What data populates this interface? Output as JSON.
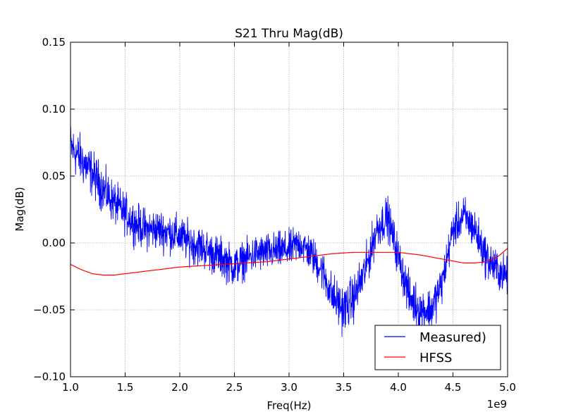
{
  "chart_data": {
    "type": "line",
    "title": "S21 Thru Mag(dB)",
    "xlabel": "Freq(Hz)",
    "ylabel": "Mag(dB)",
    "x_offset_label": "1e9",
    "xlim": [
      1.0,
      5.0
    ],
    "ylim": [
      -0.1,
      0.15
    ],
    "xticks": [
      1.0,
      1.5,
      2.0,
      2.5,
      3.0,
      3.5,
      4.0,
      4.5,
      5.0
    ],
    "xtick_labels": [
      "1.0",
      "1.5",
      "2.0",
      "2.5",
      "3.0",
      "3.5",
      "4.0",
      "4.5",
      "5.0"
    ],
    "yticks": [
      -0.1,
      -0.05,
      0.0,
      0.05,
      0.1,
      0.15
    ],
    "ytick_labels": [
      "−0.10",
      "−0.05",
      "0.00",
      "0.05",
      "0.10",
      "0.15"
    ],
    "grid": true,
    "legend_position": "lower-right",
    "series": [
      {
        "name": "Measured)",
        "color": "#0000ff",
        "style": "noisy",
        "x": [
          1.0,
          1.1,
          1.2,
          1.3,
          1.4,
          1.5,
          1.6,
          1.7,
          1.8,
          1.9,
          2.0,
          2.1,
          2.2,
          2.3,
          2.4,
          2.5,
          2.6,
          2.7,
          2.8,
          2.9,
          3.0,
          3.1,
          3.2,
          3.3,
          3.4,
          3.5,
          3.6,
          3.7,
          3.8,
          3.9,
          4.0,
          4.1,
          4.2,
          4.3,
          4.4,
          4.5,
          4.6,
          4.7,
          4.8,
          4.9,
          5.0
        ],
        "y": [
          0.072,
          0.062,
          0.052,
          0.04,
          0.03,
          0.022,
          0.014,
          0.01,
          0.01,
          0.008,
          0.005,
          0.0,
          -0.003,
          -0.008,
          -0.012,
          -0.018,
          -0.012,
          -0.008,
          -0.007,
          -0.006,
          -0.005,
          0.0,
          -0.008,
          -0.02,
          -0.04,
          -0.05,
          -0.04,
          -0.02,
          0.01,
          0.02,
          -0.01,
          -0.04,
          -0.05,
          -0.05,
          -0.03,
          0.01,
          0.02,
          0.01,
          -0.01,
          -0.02,
          -0.025
        ],
        "noise_amplitude": [
          0.026,
          0.026,
          0.025,
          0.024,
          0.023,
          0.022,
          0.022,
          0.022,
          0.022,
          0.022,
          0.022,
          0.022,
          0.022,
          0.022,
          0.022,
          0.022,
          0.02,
          0.02,
          0.02,
          0.02,
          0.02,
          0.02,
          0.02,
          0.022,
          0.024,
          0.026,
          0.025,
          0.024,
          0.022,
          0.022,
          0.022,
          0.024,
          0.024,
          0.024,
          0.022,
          0.02,
          0.022,
          0.022,
          0.022,
          0.022,
          0.02
        ]
      },
      {
        "name": "HFSS",
        "color": "#ff0000",
        "style": "smooth",
        "x": [
          1.0,
          1.1,
          1.2,
          1.3,
          1.4,
          1.5,
          1.6,
          1.7,
          1.8,
          1.9,
          2.0,
          2.2,
          2.4,
          2.6,
          2.8,
          3.0,
          3.2,
          3.4,
          3.6,
          3.8,
          4.0,
          4.2,
          4.4,
          4.6,
          4.7,
          4.8,
          4.9,
          5.0
        ],
        "y": [
          -0.016,
          -0.02,
          -0.023,
          -0.024,
          -0.024,
          -0.023,
          -0.022,
          -0.021,
          -0.02,
          -0.019,
          -0.018,
          -0.017,
          -0.016,
          -0.015,
          -0.014,
          -0.012,
          -0.01,
          -0.008,
          -0.007,
          -0.007,
          -0.007,
          -0.009,
          -0.012,
          -0.015,
          -0.015,
          -0.014,
          -0.011,
          -0.004
        ]
      }
    ]
  }
}
